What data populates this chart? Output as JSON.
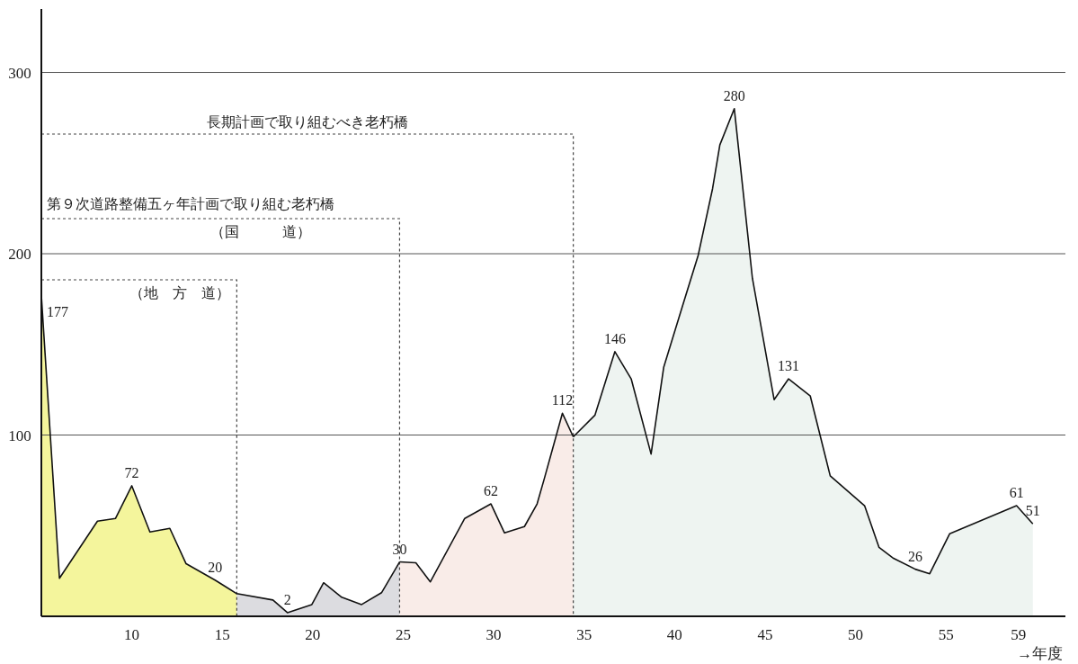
{
  "chart_data": {
    "type": "area",
    "xlabel": "→年度",
    "xlim": [
      5,
      61.6
    ],
    "ylim": [
      0,
      335
    ],
    "xticks": [
      10,
      15,
      20,
      25,
      30,
      35,
      40,
      45,
      50,
      55,
      59
    ],
    "yticks": [
      100,
      200,
      300
    ],
    "grid": "y",
    "series": [
      {
        "color": "#f4f59c",
        "x": [
          5,
          6,
          8.1,
          9.1,
          10,
          11,
          12.1,
          13,
          14.6,
          15.8
        ],
        "values": [
          177,
          21,
          52.5,
          54,
          72,
          46.5,
          48.5,
          29,
          20,
          12.5
        ],
        "value_labels": [
          "177",
          null,
          null,
          null,
          "72",
          null,
          null,
          null,
          "20",
          null
        ]
      },
      {
        "color": "#dcdce0",
        "x": [
          15.8,
          17.8,
          18.6,
          19.95,
          20.6,
          21.6,
          22.7,
          23.8,
          24.8
        ],
        "values": [
          12.5,
          9,
          2,
          6.5,
          18.5,
          10.5,
          6.5,
          13,
          30
        ],
        "value_labels": [
          null,
          null,
          "2",
          null,
          null,
          null,
          null,
          null,
          "30"
        ]
      },
      {
        "color": "#f9ece8",
        "x": [
          24.8,
          25.7,
          26.5,
          28.4,
          29.85,
          30.6,
          31.7,
          32.4,
          32.8,
          33.8,
          34.4
        ],
        "values": [
          30,
          29.5,
          19,
          54,
          62,
          46,
          49.5,
          62,
          76,
          112,
          99
        ],
        "value_labels": [
          null,
          null,
          null,
          null,
          "62",
          null,
          null,
          null,
          null,
          "112",
          null
        ]
      },
      {
        "color": "#eef4f1",
        "x": [
          34.4,
          35.6,
          36.7,
          37.6,
          38.7,
          39.4,
          40.4,
          41.3,
          42.1,
          42.5,
          43.3,
          44.3,
          45.5,
          46.3,
          47.5,
          48.6,
          50.5,
          51.3,
          52.1,
          53.3,
          54.1,
          55.2,
          58.9,
          59.8
        ],
        "values": [
          99,
          111,
          146,
          131,
          89.5,
          137.5,
          170,
          199,
          236,
          260,
          280,
          186.5,
          119.5,
          131,
          121.5,
          77.5,
          61,
          38,
          32,
          26,
          23.5,
          45.5,
          61,
          51
        ],
        "value_labels": [
          null,
          null,
          "146",
          null,
          null,
          null,
          null,
          null,
          null,
          null,
          "280",
          null,
          null,
          "131",
          null,
          null,
          null,
          null,
          null,
          "26",
          null,
          null,
          "61",
          "51"
        ]
      }
    ],
    "ref_lines": [
      {
        "axis": "x",
        "value": 15.8,
        "label": "（地　方　道）",
        "line_style": "dashed"
      },
      {
        "axis": "x",
        "value": 24.8,
        "label": "（国　　　道）",
        "line_style": "dashed"
      },
      {
        "axis": "x",
        "value": 34.4,
        "label": "長期計画で取り組むべき老朽橋",
        "line_style": "dashed"
      }
    ],
    "annotations": [
      "第９次道路整備五ヶ年計画で取り組む老朽橋"
    ]
  }
}
